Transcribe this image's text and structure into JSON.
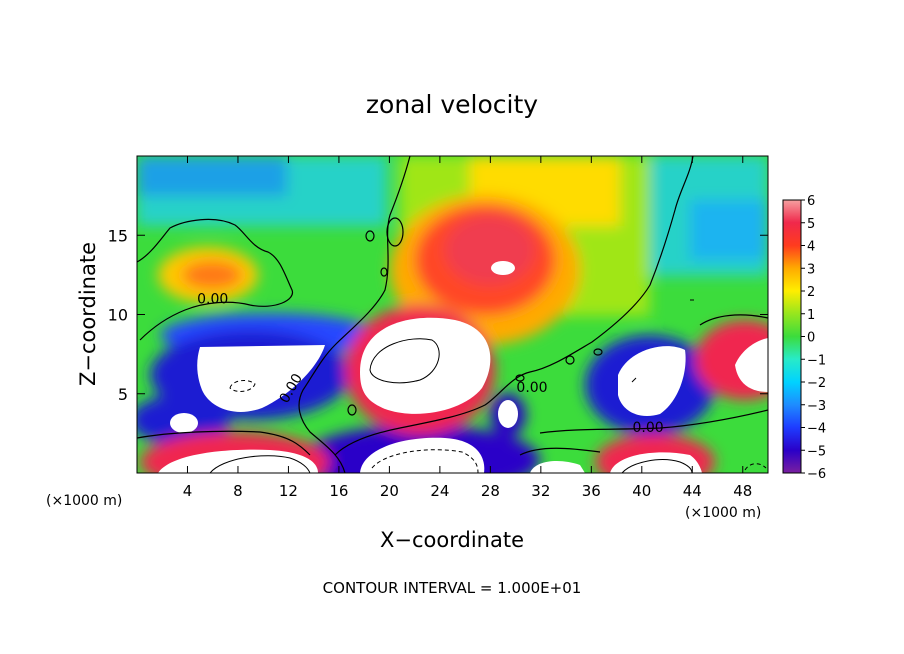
{
  "chart_data": {
    "type": "heatmap",
    "title": "zonal velocity",
    "xlabel": "X−coordinate",
    "ylabel": "Z−coordinate",
    "x_unit_left": "(×1000 m)",
    "x_unit_right": "(×1000 m)",
    "footer": "CONTOUR INTERVAL = 1.000E+01",
    "xlim": [
      0,
      50
    ],
    "ylim": [
      0,
      20
    ],
    "x_ticks": [
      {
        "value": 4,
        "label": "4"
      },
      {
        "value": 8,
        "label": "8"
      },
      {
        "value": 12,
        "label": "12"
      },
      {
        "value": 16,
        "label": "16"
      },
      {
        "value": 20,
        "label": "20"
      },
      {
        "value": 24,
        "label": "24"
      },
      {
        "value": 28,
        "label": "28"
      },
      {
        "value": 32,
        "label": "32"
      },
      {
        "value": 36,
        "label": "36"
      },
      {
        "value": 40,
        "label": "40"
      },
      {
        "value": 44,
        "label": "44"
      },
      {
        "value": 48,
        "label": "48"
      }
    ],
    "y_ticks": [
      {
        "value": 5,
        "label": "5"
      },
      {
        "value": 10,
        "label": "10"
      },
      {
        "value": 15,
        "label": "15"
      }
    ],
    "colorbar": {
      "range": [
        -6,
        6
      ],
      "ticks": [
        {
          "value": 6,
          "label": "6"
        },
        {
          "value": 5,
          "label": "5"
        },
        {
          "value": 4,
          "label": "4"
        },
        {
          "value": 3,
          "label": "3"
        },
        {
          "value": 2,
          "label": "2"
        },
        {
          "value": 1,
          "label": "1"
        },
        {
          "value": 0,
          "label": "0"
        },
        {
          "value": -1,
          "label": "−1"
        },
        {
          "value": -2,
          "label": "−2"
        },
        {
          "value": -3,
          "label": "−3"
        },
        {
          "value": -4,
          "label": "−4"
        },
        {
          "value": -5,
          "label": "−5"
        },
        {
          "value": -6,
          "label": "−6"
        }
      ]
    },
    "contour_labels": [
      {
        "text": "0.00",
        "x": 6,
        "y": 10.7
      },
      {
        "text": "0.00",
        "x": 12.5,
        "y": 5.2
      },
      {
        "text": "0.00",
        "x": 31.3,
        "y": 5.1
      },
      {
        "text": "0.00",
        "x": 40.5,
        "y": 2.6
      }
    ],
    "features": [
      {
        "x": 28,
        "y": 13,
        "value": 6
      },
      {
        "x": 27,
        "y": 14.5,
        "value": 5
      },
      {
        "x": 23,
        "y": 6.5,
        "value": 7
      },
      {
        "x": 9,
        "y": 5.8,
        "value": -7
      },
      {
        "x": 3.5,
        "y": 3,
        "value": -7
      },
      {
        "x": 40,
        "y": 5.5,
        "value": -7
      },
      {
        "x": 48,
        "y": 6.2,
        "value": 7
      },
      {
        "x": 22,
        "y": 1.5,
        "value": -7
      },
      {
        "x": 9,
        "y": 1.2,
        "value": 7
      },
      {
        "x": 40,
        "y": 1.3,
        "value": 7
      },
      {
        "x": 5,
        "y": 12,
        "value": 3
      }
    ]
  }
}
